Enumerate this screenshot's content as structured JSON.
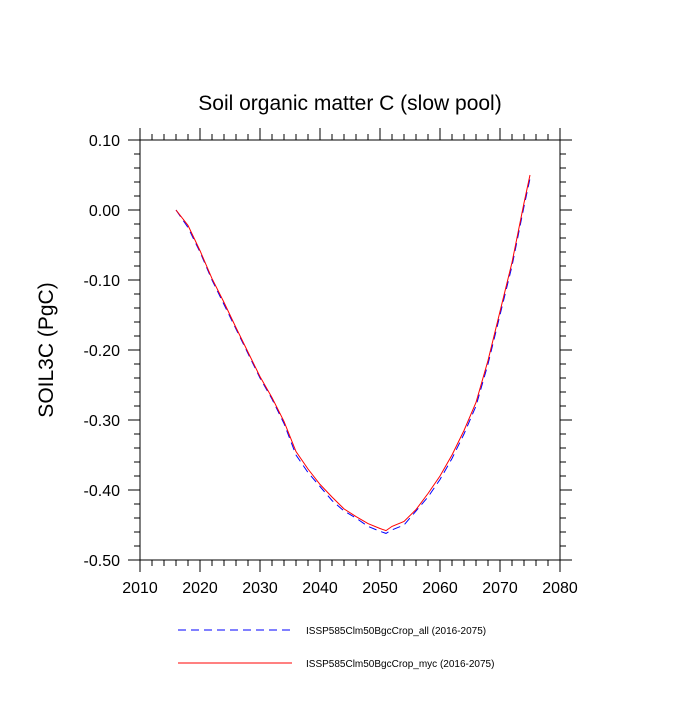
{
  "chart_data": {
    "type": "line",
    "title": "Soil organic matter C (slow pool)",
    "xlabel": "",
    "ylabel": "SOIL3C  (PgC)",
    "xlim": [
      2010,
      2080
    ],
    "ylim": [
      -0.5,
      0.1
    ],
    "xticks": [
      2010,
      2020,
      2030,
      2040,
      2050,
      2060,
      2070,
      2080
    ],
    "xtick_labels": [
      "2010",
      "2020",
      "2030",
      "2040",
      "2050",
      "2060",
      "2070",
      "2080"
    ],
    "yticks": [
      -0.5,
      -0.4,
      -0.3,
      -0.2,
      -0.1,
      0.0,
      0.1
    ],
    "ytick_labels": [
      "-0.50",
      "-0.40",
      "-0.30",
      "-0.20",
      "-0.10",
      "0.00",
      "0.10"
    ],
    "grid": false,
    "legend_position": "bottom",
    "series": [
      {
        "name": "ISSP585Clm50BgcCrop_all (2016-2075)",
        "color": "#0000ff",
        "style": "dashed",
        "x": [
          2016,
          2018,
          2020,
          2022,
          2024,
          2026,
          2028,
          2030,
          2032,
          2034,
          2036,
          2038,
          2040,
          2042,
          2044,
          2046,
          2048,
          2050,
          2051,
          2052,
          2054,
          2056,
          2058,
          2060,
          2062,
          2064,
          2066,
          2068,
          2070,
          2072,
          2074,
          2075
        ],
        "y": [
          0.0,
          -0.025,
          -0.06,
          -0.1,
          -0.135,
          -0.17,
          -0.205,
          -0.24,
          -0.27,
          -0.305,
          -0.35,
          -0.375,
          -0.395,
          -0.415,
          -0.43,
          -0.44,
          -0.452,
          -0.459,
          -0.462,
          -0.457,
          -0.45,
          -0.43,
          -0.41,
          -0.385,
          -0.355,
          -0.32,
          -0.28,
          -0.22,
          -0.15,
          -0.08,
          0.005,
          0.045
        ]
      },
      {
        "name": "ISSP585Clm50BgcCrop_myc (2016-2075)",
        "color": "#ff0000",
        "style": "solid",
        "x": [
          2016,
          2018,
          2020,
          2022,
          2024,
          2026,
          2028,
          2030,
          2032,
          2034,
          2036,
          2038,
          2040,
          2042,
          2044,
          2046,
          2048,
          2050,
          2051,
          2052,
          2054,
          2056,
          2058,
          2060,
          2062,
          2064,
          2066,
          2068,
          2070,
          2072,
          2074,
          2075
        ],
        "y": [
          0.0,
          -0.022,
          -0.058,
          -0.098,
          -0.132,
          -0.168,
          -0.203,
          -0.238,
          -0.268,
          -0.302,
          -0.345,
          -0.37,
          -0.392,
          -0.41,
          -0.427,
          -0.438,
          -0.448,
          -0.455,
          -0.458,
          -0.452,
          -0.445,
          -0.428,
          -0.405,
          -0.38,
          -0.35,
          -0.315,
          -0.275,
          -0.215,
          -0.145,
          -0.075,
          0.01,
          0.05
        ]
      }
    ]
  }
}
